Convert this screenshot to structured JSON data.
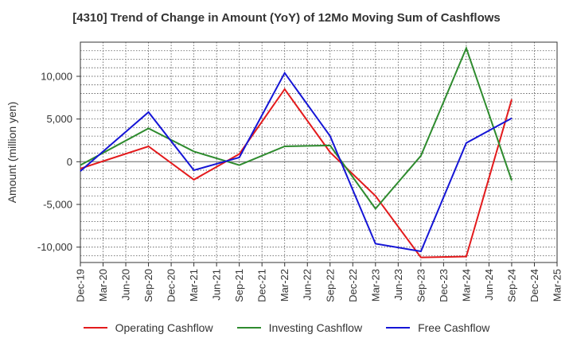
{
  "chart_data": {
    "type": "line",
    "title": "[4310]  Trend of Change in Amount (YoY) of 12Mo Moving Sum of Cashflows",
    "xlabel": "",
    "ylabel": "Amount (million yen)",
    "ylim": [
      -11800,
      14000
    ],
    "yticks": [
      10000,
      5000,
      0,
      -5000,
      -10000
    ],
    "ytick_labels": [
      "10,000",
      "5,000",
      "0",
      "-5,000",
      "-10,000"
    ],
    "categories": [
      "Dec-19",
      "Mar-20",
      "Jun-20",
      "Sep-20",
      "Dec-20",
      "Mar-21",
      "Jun-21",
      "Sep-21",
      "Dec-21",
      "Mar-22",
      "Jun-22",
      "Sep-22",
      "Dec-22",
      "Mar-23",
      "Jun-23",
      "Sep-23",
      "Dec-23",
      "Mar-24",
      "Jun-24",
      "Sep-24",
      "Dec-24",
      "Mar-25"
    ],
    "grid": true,
    "legend_position": "bottom",
    "series": [
      {
        "name": "Operating Cashflow",
        "color": "#e31a1c",
        "x": [
          "Dec-19",
          "Sep-20",
          "Mar-21",
          "Sep-21",
          "Mar-22",
          "Sep-22",
          "Mar-23",
          "Sep-23",
          "Mar-24",
          "Sep-24"
        ],
        "values": [
          -800,
          1800,
          -2100,
          900,
          8500,
          1100,
          -4000,
          -11200,
          -11100,
          7300
        ]
      },
      {
        "name": "Investing Cashflow",
        "color": "#2e8b2e",
        "x": [
          "Dec-19",
          "Sep-20",
          "Mar-21",
          "Sep-21",
          "Mar-22",
          "Sep-22",
          "Mar-23",
          "Sep-23",
          "Mar-24",
          "Sep-24"
        ],
        "values": [
          -400,
          3900,
          1200,
          -400,
          1800,
          1900,
          -5500,
          700,
          13300,
          -2200
        ]
      },
      {
        "name": "Free Cashflow",
        "color": "#1515d6",
        "x": [
          "Dec-19",
          "Sep-20",
          "Mar-21",
          "Sep-21",
          "Mar-22",
          "Sep-22",
          "Mar-23",
          "Sep-23",
          "Mar-24",
          "Sep-24"
        ],
        "values": [
          -1100,
          5800,
          -1000,
          500,
          10400,
          3000,
          -9600,
          -10500,
          2200,
          5100
        ]
      }
    ]
  }
}
